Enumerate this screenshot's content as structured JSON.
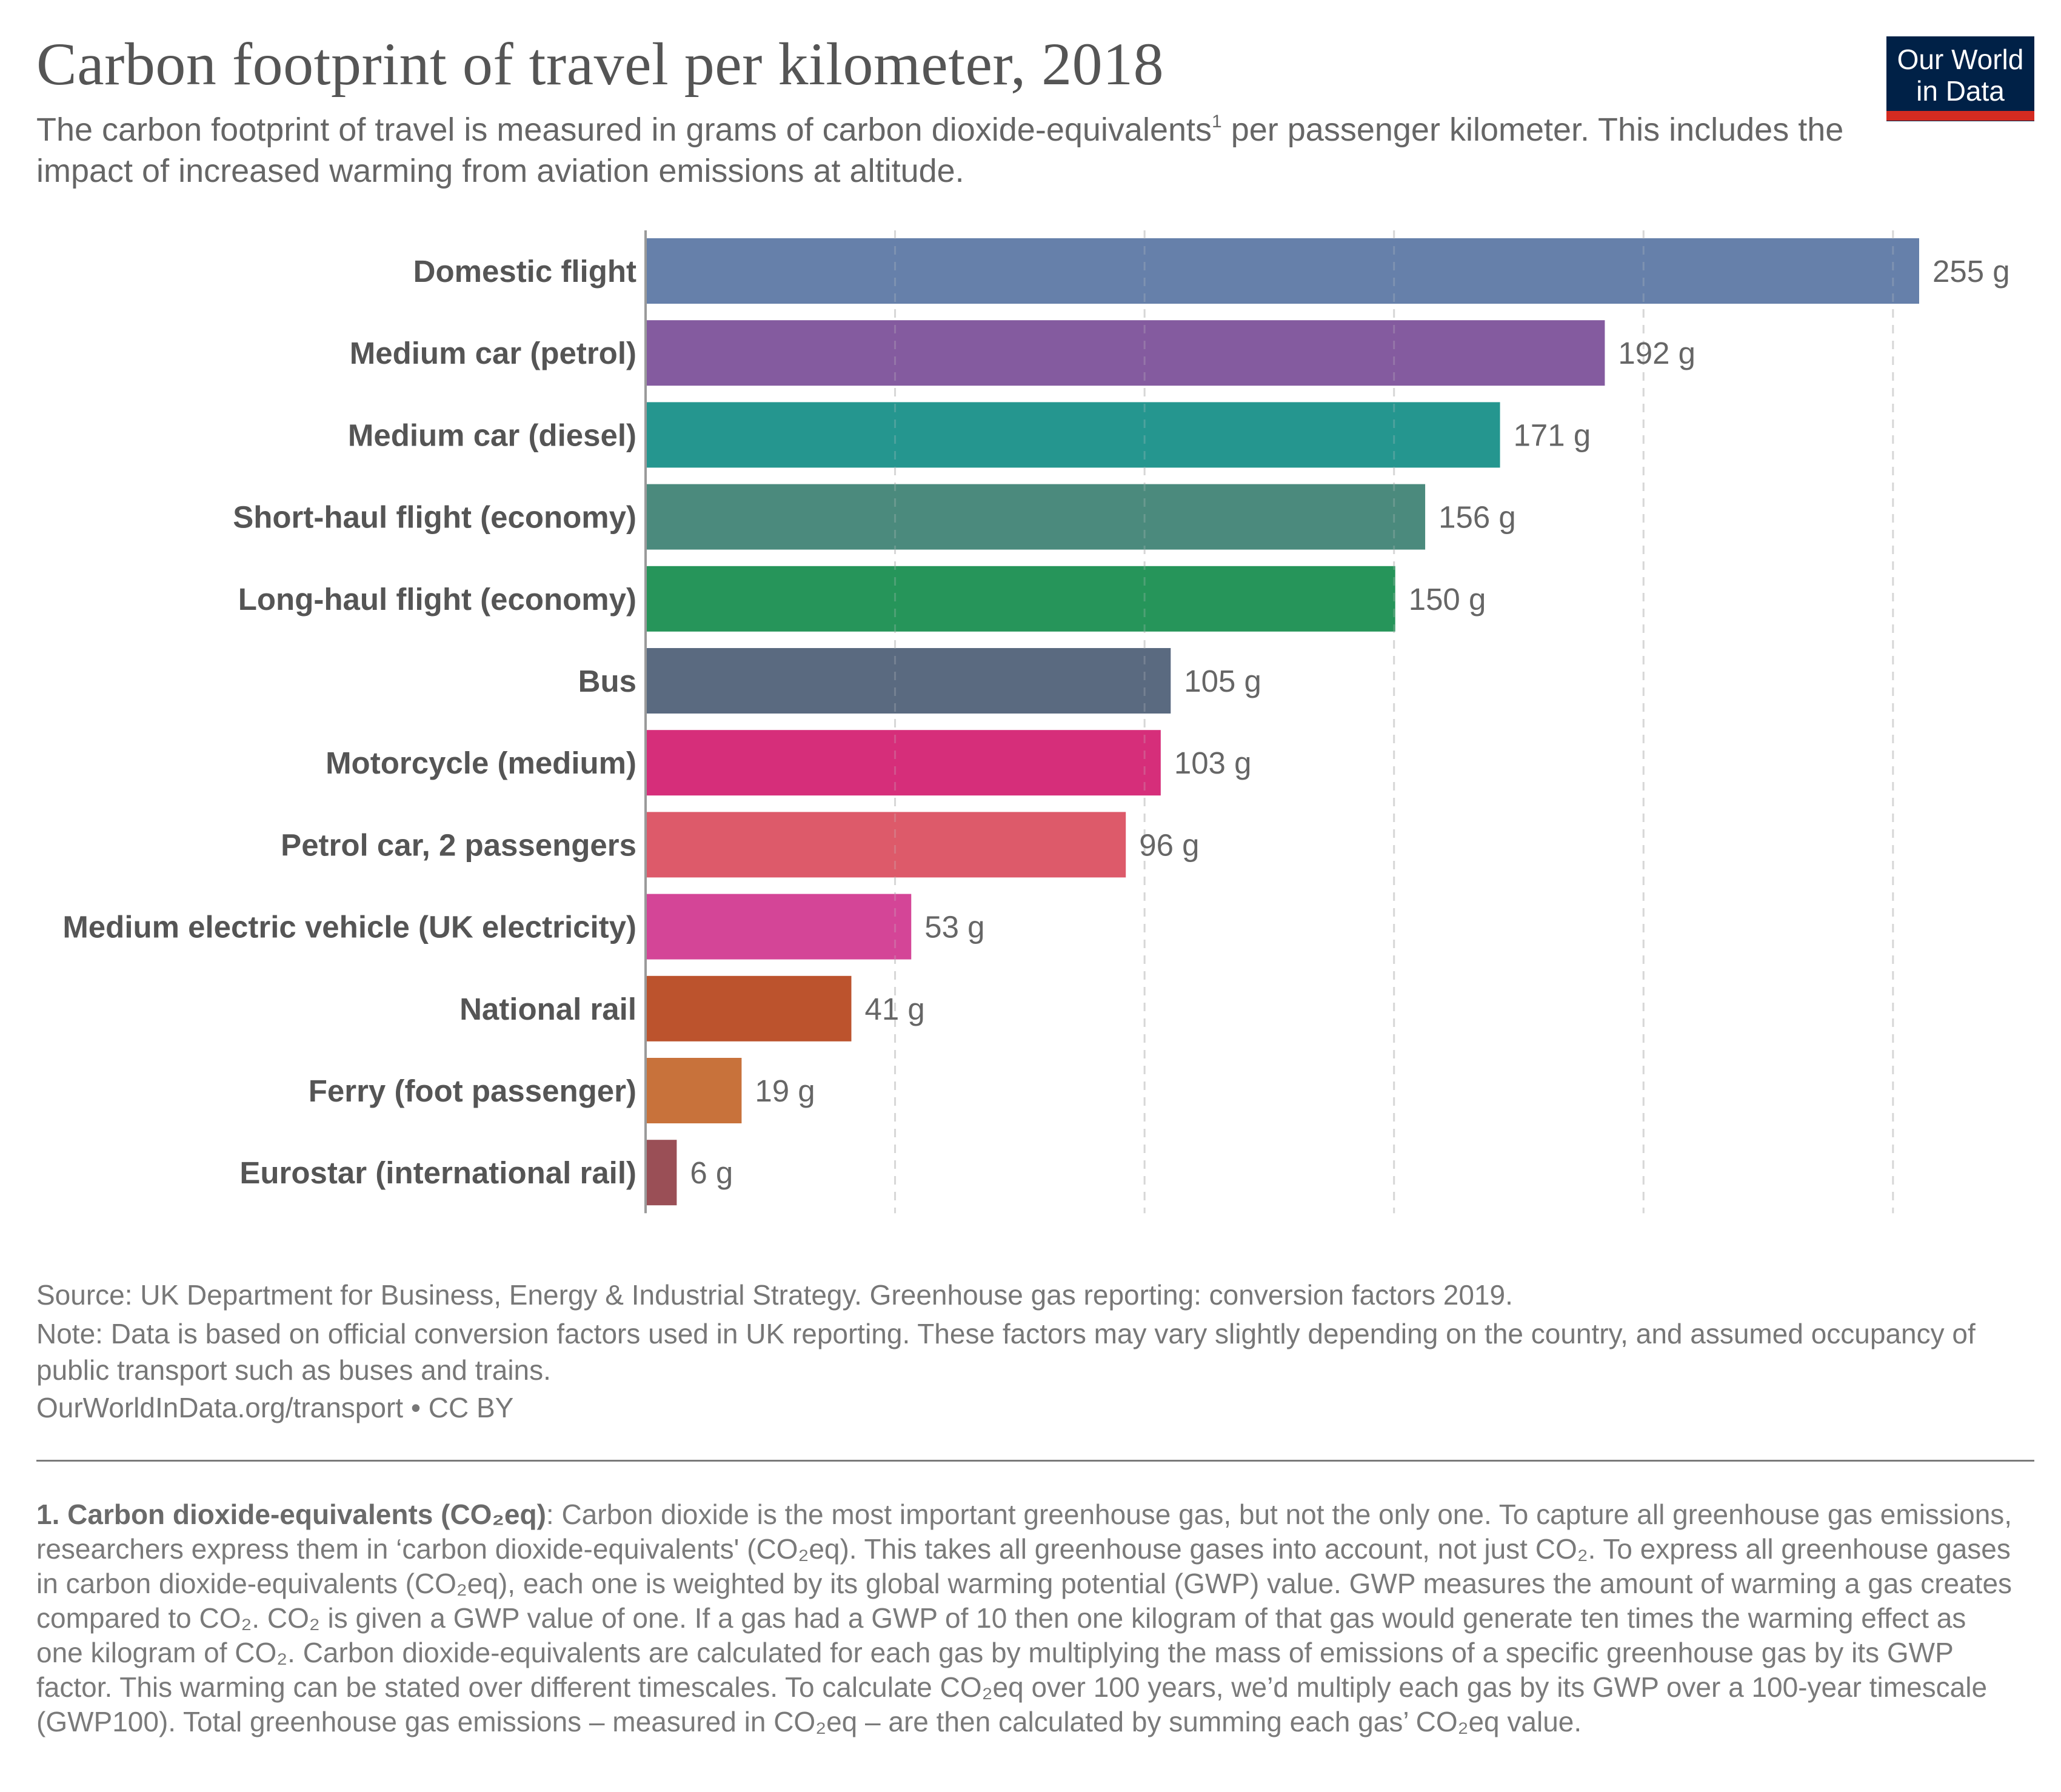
{
  "header": {
    "title": "Carbon footprint of travel per kilometer, 2018",
    "subtitle_part1": "The carbon footprint of travel is measured in grams of carbon dioxide-equivalents",
    "subtitle_sup": "1",
    "subtitle_part2": " per passenger kilometer. This includes the impact of increased warming from aviation emissions at altitude."
  },
  "logo": {
    "line1": "Our World",
    "line2": "in Data",
    "bg_color": "#002147",
    "accent_color": "#d42b21"
  },
  "chart_data": {
    "type": "bar",
    "orientation": "horizontal",
    "title": "Carbon footprint of travel per kilometer, 2018",
    "xlabel": "",
    "ylabel": "",
    "unit": "g",
    "xlim": [
      0,
      255
    ],
    "grid": true,
    "gridlines_x": [
      50,
      100,
      150,
      200,
      250
    ],
    "categories": [
      "Domestic flight",
      "Medium car (petrol)",
      "Medium car (diesel)",
      "Short-haul flight (economy)",
      "Long-haul flight (economy)",
      "Bus",
      "Motorcycle (medium)",
      "Petrol car, 2 passengers",
      "Medium electric vehicle (UK electricity)",
      "National rail",
      "Ferry (foot passenger)",
      "Eurostar (international rail)"
    ],
    "values": [
      255,
      192,
      171,
      156,
      150,
      105,
      103,
      96,
      53,
      41,
      19,
      6
    ],
    "value_labels": [
      "255 g",
      "192 g",
      "171 g",
      "156 g",
      "150 g",
      "105 g",
      "103 g",
      "96 g",
      "53 g",
      "41 g",
      "19 g",
      "6 g"
    ],
    "colors": [
      "#6680aa",
      "#845b9f",
      "#25968f",
      "#4b8a7d",
      "#26955a",
      "#5a6a80",
      "#d62e7a",
      "#dd5a6a",
      "#d44597",
      "#bc532d",
      "#c8723b",
      "#9a4f56"
    ]
  },
  "footer": {
    "source": "Source: UK Department for Business, Energy & Industrial Strategy. Greenhouse gas reporting: conversion factors 2019.",
    "note": "Note: Data is based on official conversion factors used in UK reporting. These factors may vary slightly depending on the country, and assumed occupancy of public transport such as buses and trains.",
    "url": "OurWorldInData.org/transport • CC BY"
  },
  "footnote": {
    "heading": "1. Carbon dioxide-equivalents (CO₂eq)",
    "body": ": Carbon dioxide is the most important greenhouse gas, but not the only one. To capture all greenhouse gas emissions, researchers express them in ‘carbon dioxide-equivalents' (CO₂eq). This takes all greenhouse gases into account, not just CO₂. To express all greenhouse gases in carbon dioxide-equivalents (CO₂eq), each one is weighted by its global warming potential (GWP) value. GWP measures the amount of warming a gas creates compared to CO₂. CO₂ is given a GWP value of one. If a gas had a GWP of 10 then one kilogram of that gas would generate ten times the warming effect as one kilogram of CO₂. Carbon dioxide-equivalents are calculated for each gas by multiplying the mass of emissions of a specific greenhouse gas by its GWP factor. This warming can be stated over different timescales. To calculate CO₂eq over 100 years, we’d multiply each gas by its GWP over a 100-year timescale (GWP100). Total greenhouse gas emissions – measured in CO₂eq – are then calculated by summing each gas’ CO₂eq value."
  }
}
